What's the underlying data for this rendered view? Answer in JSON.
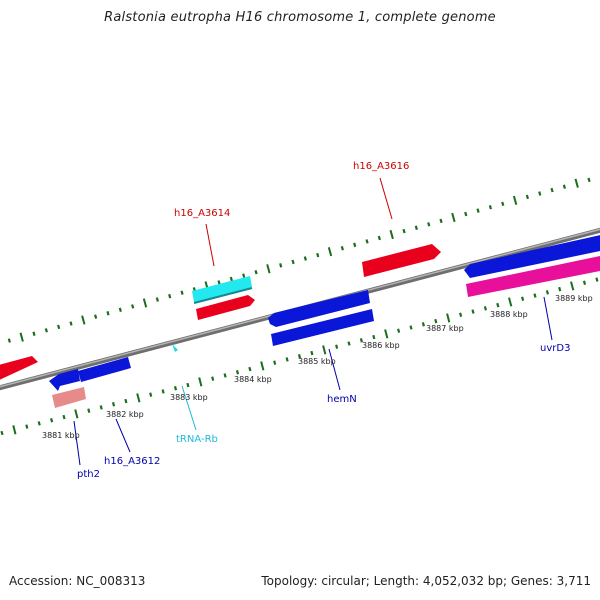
{
  "title": "Ralstonia eutropha H16 chromosome 1, complete genome",
  "footer": {
    "accession": "Accession: NC_008313",
    "topology": "Topology: circular; Length: 4,052,032 bp; Genes: 3,711"
  },
  "colors": {
    "forward_cds": "#e8001c",
    "reverse_cds": "#0a16d8",
    "trna": "#22d8e0",
    "pseudo": "#e68a8a",
    "pink": "#e8109a",
    "tick": "#1b6e1b",
    "backbone": "#8a8a8a"
  },
  "map_data": {
    "kbp_labels": [
      "3881 kbp",
      "3882 kbp",
      "3883 kbp",
      "3884 kbp",
      "3885 kbp",
      "3886 kbp",
      "3887 kbp",
      "3888 kbp",
      "3889 kbp"
    ],
    "gene_labels": [
      {
        "text": "h16_A3616",
        "color": "#cc0000"
      },
      {
        "text": "h16_A3614",
        "color": "#cc0000"
      },
      {
        "text": "hemN",
        "color": "#0000aa"
      },
      {
        "text": "uvrD3",
        "color": "#0000aa"
      },
      {
        "text": "tRNA-Rb",
        "color": "#22b8d8"
      },
      {
        "text": "h16_A3612",
        "color": "#0000aa"
      },
      {
        "text": "pth2",
        "color": "#0000aa"
      }
    ]
  }
}
